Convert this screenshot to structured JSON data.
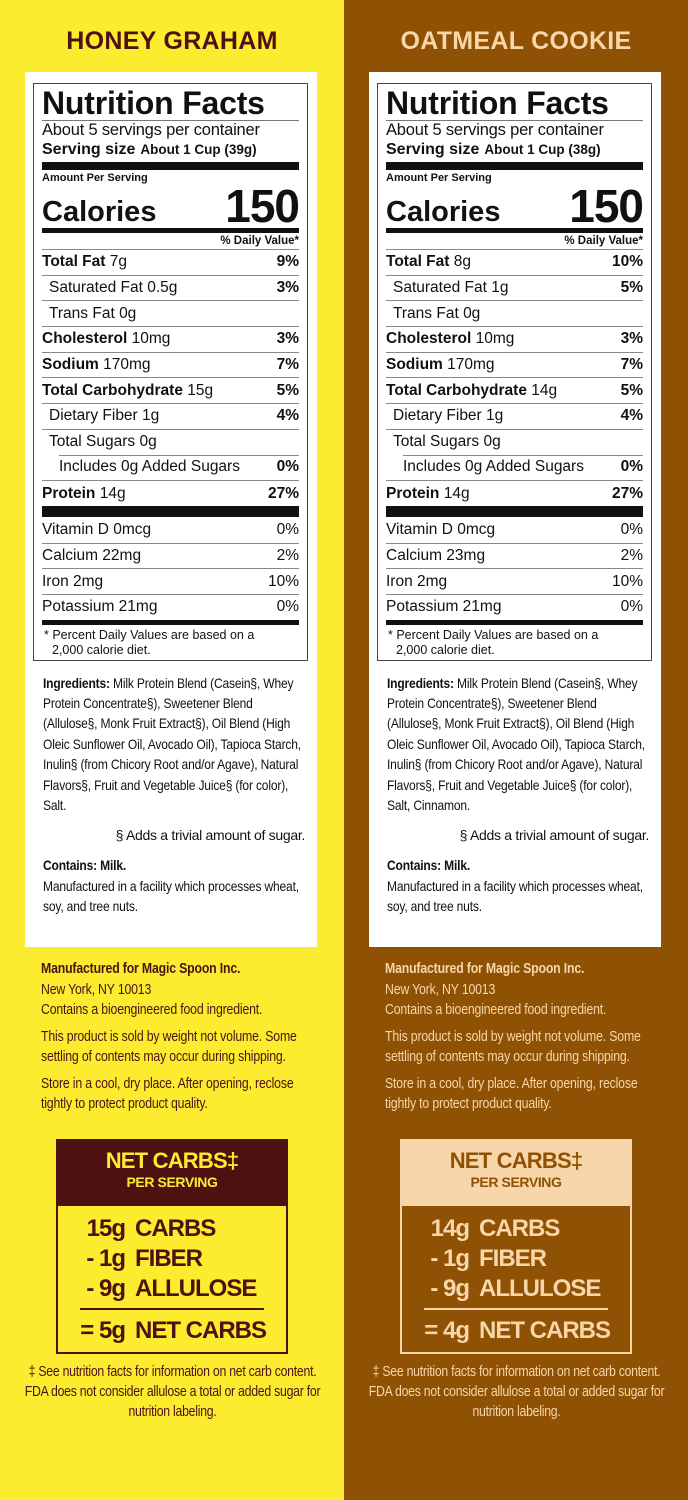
{
  "colors": {
    "honey_bg": "#fcec30",
    "honey_text": "#4d1111",
    "oatmeal_bg": "#8f5104",
    "oatmeal_text": "#f7d6a9"
  },
  "panels": [
    {
      "flavor": "HONEY GRAHAM",
      "label": {
        "title": "Nutrition Facts",
        "servings": "About 5 servings per container",
        "serving_size_label": "Serving size",
        "serving_size": "About 1 Cup (39g)",
        "amount_per_serving": "Amount Per Serving",
        "calories_label": "Calories",
        "calories": "150",
        "dv_header": "% Daily Value*",
        "nutrients": [
          {
            "name": "Total Fat",
            "amount": "7g",
            "dv": "9%",
            "bold": true,
            "indent": 0
          },
          {
            "name": "Saturated Fat",
            "amount": "0.5g",
            "dv": "3%",
            "bold": false,
            "indent": 1
          },
          {
            "name": "Trans Fat",
            "amount": "0g",
            "dv": "",
            "bold": false,
            "indent": 1
          },
          {
            "name": "Cholesterol",
            "amount": "10mg",
            "dv": "3%",
            "bold": true,
            "indent": 0
          },
          {
            "name": "Sodium",
            "amount": "170mg",
            "dv": "7%",
            "bold": true,
            "indent": 0
          },
          {
            "name": "Total Carbohydrate",
            "amount": "15g",
            "dv": "5%",
            "bold": true,
            "indent": 0
          },
          {
            "name": "Dietary Fiber",
            "amount": "1g",
            "dv": "4%",
            "bold": false,
            "indent": 1
          },
          {
            "name": "Total Sugars",
            "amount": "0g",
            "dv": "",
            "bold": false,
            "indent": 1
          },
          {
            "name": "Includes 0g Added Sugars",
            "amount": "",
            "dv": "0%",
            "bold": false,
            "indent": 2
          },
          {
            "name": "Protein",
            "amount": "14g",
            "dv": "27%",
            "bold": true,
            "indent": 0
          }
        ],
        "vitamins": [
          {
            "name": "Vitamin D 0mcg",
            "dv": "0%"
          },
          {
            "name": "Calcium 22mg",
            "dv": "2%"
          },
          {
            "name": "Iron 2mg",
            "dv": "10%"
          },
          {
            "name": "Potassium 21mg",
            "dv": "0%"
          }
        ],
        "footnote_1": "* Percent Daily Values are based on a",
        "footnote_2": "2,000 calorie diet."
      },
      "ingredients_label": "Ingredients:",
      "ingredients": "Milk Protein Blend (Casein§, Whey Protein Concentrate§), Sweetener Blend (Allulose§, Monk Fruit Extract§), Oil Blend (High Oleic Sunflower Oil, Avocado Oil), Tapioca Starch, Inulin§ (from Chicory Root and/or Agave), Natural Flavors§, Fruit and Vegetable Juice§ (for color), Salt.",
      "sugar_note": "§ Adds a trivial amount of sugar.",
      "contains": "Contains: Milk.",
      "facility": "Manufactured in a facility which processes wheat, soy, and tree nuts.",
      "manufacturer": "Manufactured for Magic Spoon Inc.",
      "address": "New York, NY 10013",
      "bioengineered": "Contains a bioengineered food ingredient.",
      "weight_note": "This product is sold by weight not volume. Some settling of contents may occur during shipping.",
      "storage": "Store in a cool, dry place. After opening, reclose tightly to protect product quality.",
      "net_carbs": {
        "title": "NET CARBS‡",
        "subtitle": "PER SERVING",
        "lines": [
          {
            "amount": "15g",
            "label": "CARBS"
          },
          {
            "amount": "- 1g",
            "label": "FIBER"
          },
          {
            "amount": "- 9g",
            "label": "ALLULOSE"
          }
        ],
        "total": {
          "amount": "= 5g",
          "label": "NET CARBS"
        }
      },
      "net_carbs_footnote": "‡ See nutrition facts for information on net carb content. FDA does not consider allulose a total or added sugar for nutrition labeling."
    },
    {
      "flavor": "OATMEAL COOKIE",
      "label": {
        "title": "Nutrition Facts",
        "servings": "About 5 servings per container",
        "serving_size_label": "Serving size",
        "serving_size": "About 1 Cup (38g)",
        "amount_per_serving": "Amount Per Serving",
        "calories_label": "Calories",
        "calories": "150",
        "dv_header": "% Daily Value*",
        "nutrients": [
          {
            "name": "Total Fat",
            "amount": "8g",
            "dv": "10%",
            "bold": true,
            "indent": 0
          },
          {
            "name": "Saturated Fat",
            "amount": "1g",
            "dv": "5%",
            "bold": false,
            "indent": 1
          },
          {
            "name": "Trans Fat",
            "amount": "0g",
            "dv": "",
            "bold": false,
            "indent": 1
          },
          {
            "name": "Cholesterol",
            "amount": "10mg",
            "dv": "3%",
            "bold": true,
            "indent": 0
          },
          {
            "name": "Sodium",
            "amount": "170mg",
            "dv": "7%",
            "bold": true,
            "indent": 0
          },
          {
            "name": "Total Carbohydrate",
            "amount": "14g",
            "dv": "5%",
            "bold": true,
            "indent": 0
          },
          {
            "name": "Dietary Fiber",
            "amount": "1g",
            "dv": "4%",
            "bold": false,
            "indent": 1
          },
          {
            "name": "Total Sugars",
            "amount": "0g",
            "dv": "",
            "bold": false,
            "indent": 1
          },
          {
            "name": "Includes 0g Added Sugars",
            "amount": "",
            "dv": "0%",
            "bold": false,
            "indent": 2
          },
          {
            "name": "Protein",
            "amount": "14g",
            "dv": "27%",
            "bold": true,
            "indent": 0
          }
        ],
        "vitamins": [
          {
            "name": "Vitamin D 0mcg",
            "dv": "0%"
          },
          {
            "name": "Calcium 23mg",
            "dv": "2%"
          },
          {
            "name": "Iron 2mg",
            "dv": "10%"
          },
          {
            "name": "Potassium 21mg",
            "dv": "0%"
          }
        ],
        "footnote_1": "* Percent Daily Values are based on a",
        "footnote_2": "2,000 calorie diet."
      },
      "ingredients_label": "Ingredients:",
      "ingredients": "Milk Protein Blend (Casein§, Whey Protein Concentrate§), Sweetener Blend (Allulose§, Monk Fruit Extract§), Oil Blend (High Oleic Sunflower Oil, Avocado Oil), Tapioca Starch, Inulin§ (from Chicory Root and/or Agave), Natural Flavors§, Fruit and Vegetable Juice§ (for color), Salt, Cinnamon.",
      "sugar_note": "§ Adds a trivial amount of sugar.",
      "contains": "Contains: Milk.",
      "facility": "Manufactured in a facility which processes wheat, soy, and tree nuts.",
      "manufacturer": "Manufactured for Magic Spoon Inc.",
      "address": "New York, NY 10013",
      "bioengineered": "Contains a bioengineered food ingredient.",
      "weight_note": "This product is sold by weight not volume. Some settling of contents may occur during shipping.",
      "storage": "Store in a cool, dry place. After opening, reclose tightly to protect product quality.",
      "net_carbs": {
        "title": "NET CARBS‡",
        "subtitle": "PER SERVING",
        "lines": [
          {
            "amount": "14g",
            "label": "CARBS"
          },
          {
            "amount": "- 1g",
            "label": "FIBER"
          },
          {
            "amount": "- 9g",
            "label": "ALLULOSE"
          }
        ],
        "total": {
          "amount": "= 4g",
          "label": "NET CARBS"
        }
      },
      "net_carbs_footnote": "‡ See nutrition facts for information on net carb content. FDA does not consider allulose a total or added sugar for nutrition labeling."
    }
  ]
}
